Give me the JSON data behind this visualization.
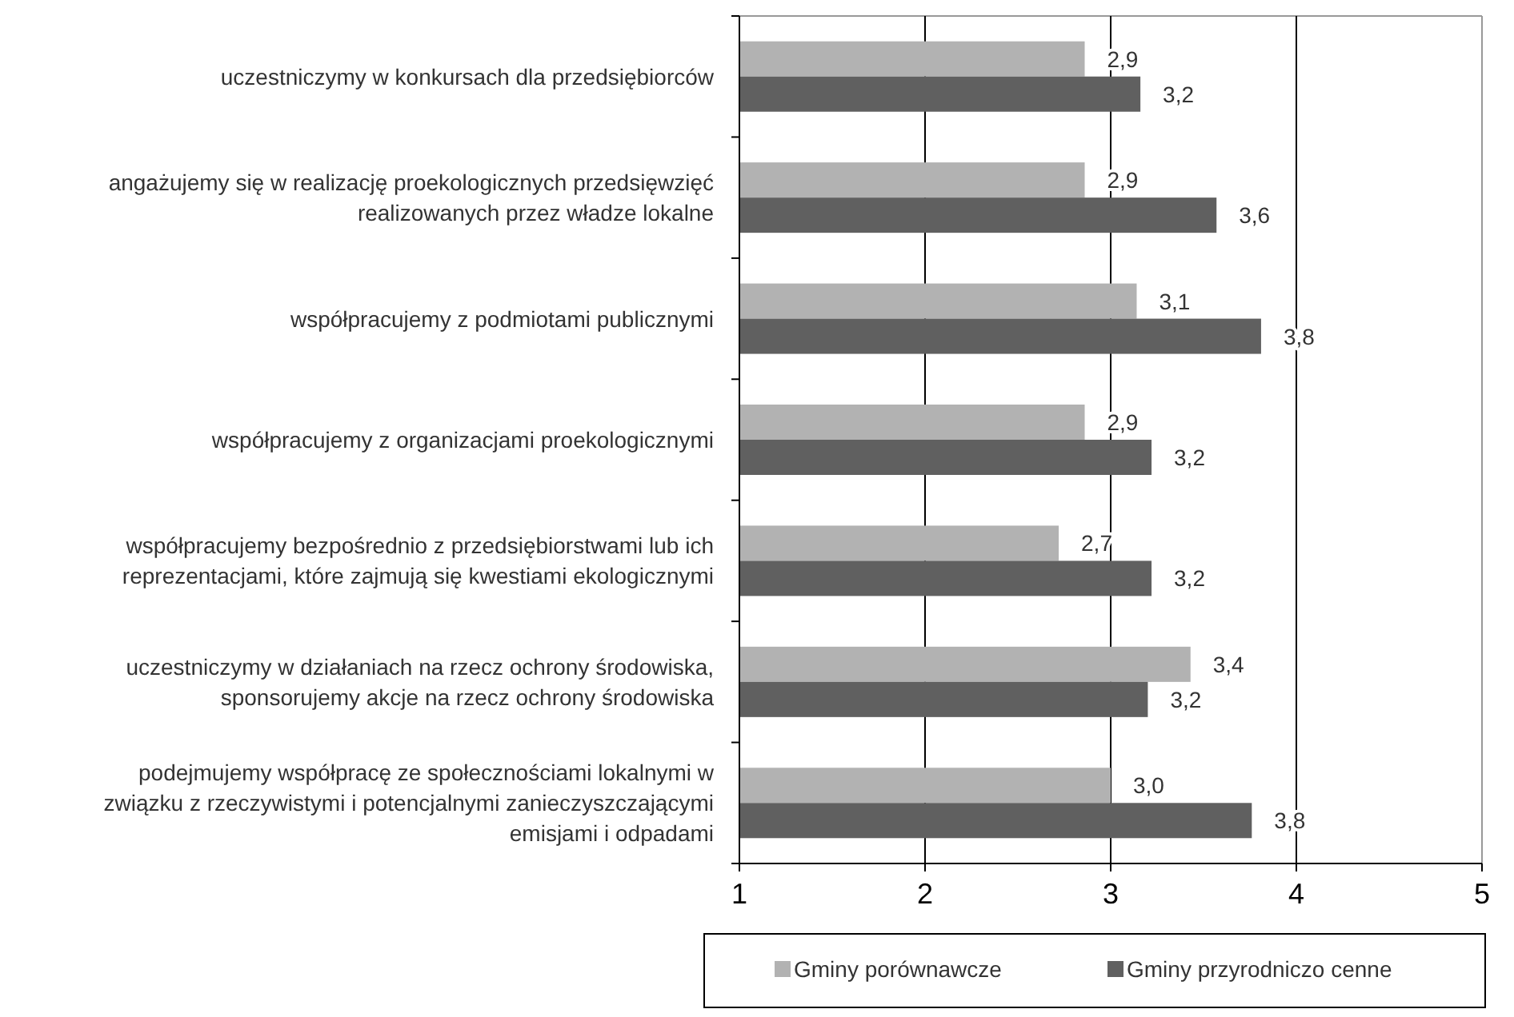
{
  "chart_data": {
    "type": "bar",
    "orientation": "horizontal",
    "categories": [
      "uczestniczymy w konkursach dla przedsiębiorców",
      "angażujemy się w realizację proekologicznych przedsięwzięć\nrealizowanych przez władze lokalne",
      "współpracujemy z podmiotami publicznymi",
      "współpracujemy z organizacjami proekologicznymi",
      "współpracujemy bezpośrednio z przedsiębiorstwami lub ich\nreprezentacjami, które zajmują się kwestiami ekologicznymi",
      "uczestniczymy w działaniach na rzecz ochrony środowiska,\nsponsorujemy akcje na rzecz ochrony środowiska",
      "podejmujemy współpracę ze społecznościami lokalnymi w\nzwiązku z rzeczywistymi i potencjalnymi zanieczyszczającymi\nemisjami i odpadami"
    ],
    "series": [
      {
        "name": "Gminy porównawcze",
        "color": "#b2b2b2",
        "values": [
          2.86,
          2.86,
          3.14,
          2.86,
          2.72,
          3.43,
          3.0
        ],
        "value_labels": [
          "2,9",
          "2,9",
          "3,1",
          "2,9",
          "2,7",
          "3,4",
          "3,0"
        ]
      },
      {
        "name": "Gminy przyrodniczo cenne",
        "color": "#606060",
        "values": [
          3.16,
          3.57,
          3.81,
          3.22,
          3.22,
          3.2,
          3.76
        ],
        "value_labels": [
          "3,2",
          "3,6",
          "3,8",
          "3,2",
          "3,2",
          "3,2",
          "3,8"
        ]
      }
    ],
    "xlim": [
      1,
      5
    ],
    "xticks": [
      1,
      2,
      3,
      4,
      5
    ],
    "grid": "x",
    "legend": "bottom"
  }
}
